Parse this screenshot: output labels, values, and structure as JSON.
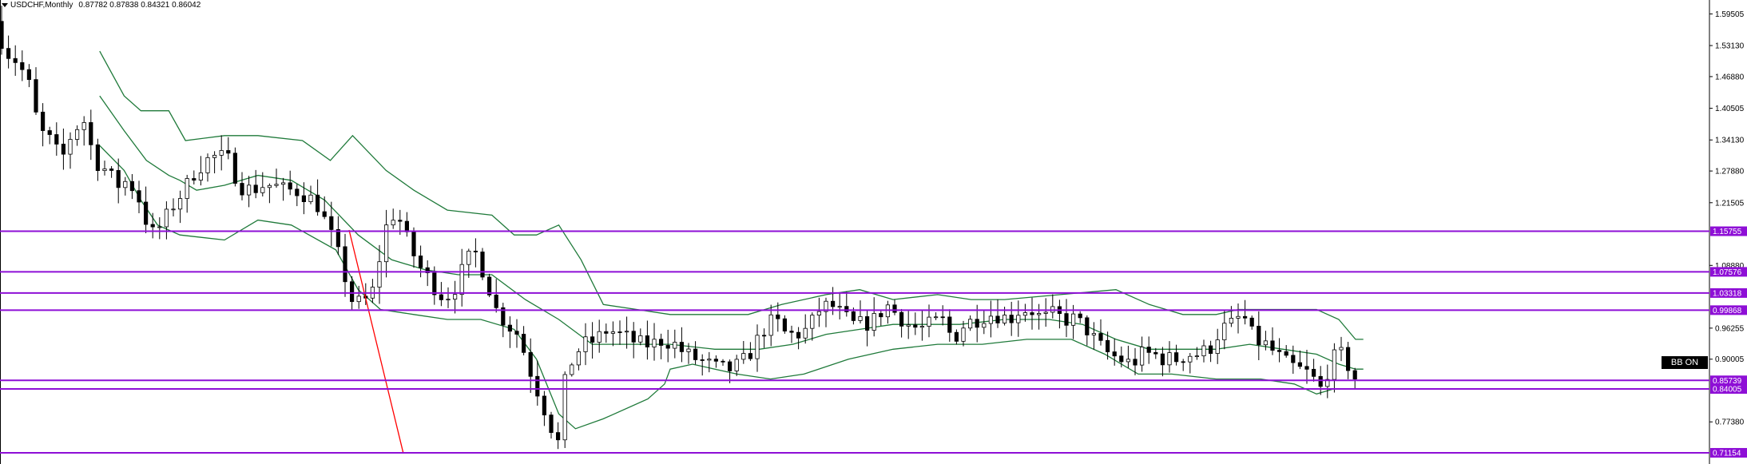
{
  "header": {
    "symbol": "USDCHF,Monthly",
    "ohlc": "0.87782 0.87838 0.84321 0.86042"
  },
  "badge": "BB ON",
  "colors": {
    "level_line": "#8e0fd6",
    "band": "#1f7a3a",
    "trend": "#ff0000",
    "bull": "#ffffff",
    "bear": "#000000",
    "wick": "#000000"
  },
  "chart_data": {
    "type": "candlestick",
    "ylim": [
      0.689,
      1.623
    ],
    "y_ticks": [
      {
        "value": 1.595,
        "label": "1.59505"
      },
      {
        "value": 1.5313,
        "label": "1.53130"
      },
      {
        "value": 1.4688,
        "label": "1.46880"
      },
      {
        "value": 1.405,
        "label": "1.40505"
      },
      {
        "value": 1.3413,
        "label": "1.34130"
      },
      {
        "value": 1.2788,
        "label": "1.27880"
      },
      {
        "value": 1.215,
        "label": "1.21505"
      },
      {
        "value": 1.0888,
        "label": "1.08880"
      },
      {
        "value": 0.9625,
        "label": "0.96255"
      },
      {
        "value": 0.9,
        "label": "0.90005"
      },
      {
        "value": 0.7738,
        "label": "0.77380"
      }
    ],
    "levels": [
      {
        "value": 1.15755,
        "label": "1.15755"
      },
      {
        "value": 1.07576,
        "label": "1.07576"
      },
      {
        "value": 1.03318,
        "label": "1.03318"
      },
      {
        "value": 0.99868,
        "label": "0.99868"
      },
      {
        "value": 0.85739,
        "label": "0.85739"
      },
      {
        "value": 0.84005,
        "label": "0.84005"
      },
      {
        "value": 0.71154,
        "label": "0.71154"
      }
    ],
    "trend_line": {
      "from": [
        1.16
      ],
      "to": [
        0.71
      ]
    },
    "anchors": [
      [
        0,
        1.58
      ],
      [
        10,
        1.52
      ],
      [
        20,
        1.5
      ],
      [
        30,
        1.46
      ],
      [
        40,
        1.36
      ],
      [
        50,
        1.34
      ],
      [
        60,
        1.3
      ],
      [
        70,
        1.36
      ],
      [
        80,
        1.38
      ],
      [
        90,
        1.3
      ],
      [
        100,
        1.28
      ],
      [
        110,
        1.25
      ],
      [
        120,
        1.26
      ],
      [
        130,
        1.22
      ],
      [
        140,
        1.15
      ],
      [
        150,
        1.17
      ],
      [
        160,
        1.21
      ],
      [
        170,
        1.24
      ],
      [
        180,
        1.28
      ],
      [
        190,
        1.3
      ],
      [
        200,
        1.31
      ],
      [
        210,
        1.3
      ],
      [
        220,
        1.25
      ],
      [
        230,
        1.24
      ],
      [
        240,
        1.25
      ],
      [
        250,
        1.25
      ],
      [
        260,
        1.24
      ],
      [
        270,
        1.24
      ],
      [
        280,
        1.23
      ],
      [
        290,
        1.21
      ],
      [
        300,
        1.16
      ],
      [
        310,
        1.1
      ],
      [
        320,
        1.02
      ],
      [
        330,
        1.01
      ],
      [
        340,
        1.04
      ],
      [
        350,
        1.16
      ],
      [
        360,
        1.2
      ],
      [
        370,
        1.14
      ],
      [
        380,
        1.09
      ],
      [
        390,
        1.06
      ],
      [
        400,
        1.03
      ],
      [
        410,
        1.03
      ],
      [
        420,
        1.08
      ],
      [
        430,
        1.12
      ],
      [
        440,
        1.07
      ],
      [
        450,
        1.0
      ],
      [
        460,
        0.97
      ],
      [
        470,
        0.95
      ],
      [
        480,
        0.88
      ],
      [
        490,
        0.82
      ],
      [
        500,
        0.76
      ],
      [
        505,
        0.72
      ],
      [
        510,
        0.84
      ],
      [
        520,
        0.91
      ],
      [
        530,
        0.93
      ],
      [
        540,
        0.94
      ],
      [
        550,
        0.96
      ],
      [
        560,
        0.95
      ],
      [
        570,
        0.94
      ],
      [
        580,
        0.93
      ],
      [
        590,
        0.93
      ],
      [
        600,
        0.94
      ],
      [
        610,
        0.93
      ],
      [
        620,
        0.91
      ],
      [
        630,
        0.9
      ],
      [
        640,
        0.89
      ],
      [
        650,
        0.88
      ],
      [
        660,
        0.88
      ],
      [
        670,
        0.89
      ],
      [
        680,
        0.92
      ],
      [
        690,
        0.96
      ],
      [
        700,
        0.98
      ],
      [
        710,
        0.95
      ],
      [
        720,
        0.95
      ],
      [
        730,
        0.96
      ],
      [
        740,
        1.0
      ],
      [
        750,
        1.01
      ],
      [
        760,
        0.99
      ],
      [
        770,
        0.97
      ],
      [
        780,
        0.97
      ],
      [
        790,
        0.98
      ],
      [
        800,
        1.01
      ],
      [
        810,
        0.99
      ],
      [
        820,
        0.97
      ],
      [
        830,
        0.96
      ],
      [
        840,
        0.97
      ],
      [
        850,
        0.98
      ],
      [
        860,
        0.94
      ],
      [
        870,
        0.97
      ],
      [
        880,
        0.98
      ],
      [
        890,
        0.99
      ],
      [
        900,
        0.99
      ],
      [
        910,
        0.98
      ],
      [
        920,
        1.0
      ],
      [
        930,
        1.0
      ],
      [
        940,
        0.98
      ],
      [
        950,
        0.99
      ],
      [
        960,
        0.98
      ],
      [
        970,
        0.98
      ],
      [
        980,
        0.96
      ],
      [
        990,
        0.93
      ],
      [
        1000,
        0.91
      ],
      [
        1010,
        0.9
      ],
      [
        1020,
        0.89
      ],
      [
        1030,
        0.91
      ],
      [
        1040,
        0.91
      ],
      [
        1050,
        0.9
      ],
      [
        1060,
        0.9
      ],
      [
        1070,
        0.91
      ],
      [
        1080,
        0.91
      ],
      [
        1090,
        0.92
      ],
      [
        1100,
        0.96
      ],
      [
        1110,
        0.97
      ],
      [
        1120,
        0.99
      ],
      [
        1130,
        0.94
      ],
      [
        1140,
        0.93
      ],
      [
        1150,
        0.91
      ],
      [
        1160,
        0.89
      ],
      [
        1170,
        0.88
      ],
      [
        1180,
        0.87
      ],
      [
        1190,
        0.84
      ],
      [
        1200,
        0.9
      ],
      [
        1210,
        0.91
      ],
      [
        1220,
        0.86
      ]
    ],
    "bands": {
      "upper": [
        [
          88,
          1.52
        ],
        [
          110,
          1.43
        ],
        [
          125,
          1.4
        ],
        [
          150,
          1.4
        ],
        [
          165,
          1.34
        ],
        [
          200,
          1.35
        ],
        [
          230,
          1.35
        ],
        [
          270,
          1.34
        ],
        [
          295,
          1.3
        ],
        [
          315,
          1.35
        ],
        [
          345,
          1.28
        ],
        [
          370,
          1.24
        ],
        [
          400,
          1.2
        ],
        [
          440,
          1.19
        ],
        [
          460,
          1.15
        ],
        [
          480,
          1.15
        ],
        [
          500,
          1.17
        ],
        [
          520,
          1.1
        ],
        [
          540,
          1.01
        ],
        [
          570,
          1.0
        ],
        [
          600,
          0.99
        ],
        [
          640,
          0.99
        ],
        [
          670,
          0.99
        ],
        [
          700,
          1.01
        ],
        [
          740,
          1.03
        ],
        [
          770,
          1.04
        ],
        [
          800,
          1.02
        ],
        [
          840,
          1.03
        ],
        [
          870,
          1.02
        ],
        [
          900,
          1.02
        ],
        [
          950,
          1.03
        ],
        [
          1000,
          1.04
        ],
        [
          1030,
          1.01
        ],
        [
          1060,
          0.99
        ],
        [
          1090,
          0.99
        ],
        [
          1110,
          1.0
        ],
        [
          1150,
          1.0
        ],
        [
          1180,
          1.0
        ],
        [
          1200,
          0.98
        ],
        [
          1215,
          0.94
        ],
        [
          1222,
          0.94
        ]
      ],
      "middle": [
        [
          88,
          1.43
        ],
        [
          110,
          1.36
        ],
        [
          130,
          1.3
        ],
        [
          150,
          1.27
        ],
        [
          160,
          1.26
        ],
        [
          175,
          1.24
        ],
        [
          200,
          1.25
        ],
        [
          230,
          1.27
        ],
        [
          260,
          1.26
        ],
        [
          290,
          1.22
        ],
        [
          320,
          1.15
        ],
        [
          350,
          1.1
        ],
        [
          380,
          1.08
        ],
        [
          410,
          1.07
        ],
        [
          440,
          1.07
        ],
        [
          470,
          1.02
        ],
        [
          500,
          0.98
        ],
        [
          530,
          0.93
        ],
        [
          560,
          0.93
        ],
        [
          600,
          0.93
        ],
        [
          640,
          0.92
        ],
        [
          680,
          0.92
        ],
        [
          710,
          0.93
        ],
        [
          740,
          0.95
        ],
        [
          770,
          0.96
        ],
        [
          800,
          0.97
        ],
        [
          830,
          0.97
        ],
        [
          860,
          0.97
        ],
        [
          900,
          0.98
        ],
        [
          940,
          0.98
        ],
        [
          970,
          0.97
        ],
        [
          1000,
          0.94
        ],
        [
          1030,
          0.92
        ],
        [
          1060,
          0.92
        ],
        [
          1090,
          0.92
        ],
        [
          1120,
          0.93
        ],
        [
          1150,
          0.92
        ],
        [
          1180,
          0.91
        ],
        [
          1200,
          0.89
        ],
        [
          1215,
          0.88
        ],
        [
          1222,
          0.88
        ]
      ],
      "lower": [
        [
          88,
          1.33
        ],
        [
          110,
          1.28
        ],
        [
          125,
          1.22
        ],
        [
          140,
          1.17
        ],
        [
          160,
          1.15
        ],
        [
          200,
          1.14
        ],
        [
          230,
          1.18
        ],
        [
          260,
          1.17
        ],
        [
          300,
          1.12
        ],
        [
          320,
          1.04
        ],
        [
          340,
          1.0
        ],
        [
          370,
          0.99
        ],
        [
          400,
          0.98
        ],
        [
          430,
          0.98
        ],
        [
          460,
          0.96
        ],
        [
          480,
          0.9
        ],
        [
          500,
          0.79
        ],
        [
          515,
          0.76
        ],
        [
          540,
          0.78
        ],
        [
          580,
          0.82
        ],
        [
          595,
          0.85
        ],
        [
          600,
          0.88
        ],
        [
          620,
          0.89
        ],
        [
          660,
          0.87
        ],
        [
          690,
          0.86
        ],
        [
          720,
          0.87
        ],
        [
          760,
          0.9
        ],
        [
          800,
          0.92
        ],
        [
          840,
          0.93
        ],
        [
          880,
          0.93
        ],
        [
          920,
          0.94
        ],
        [
          960,
          0.94
        ],
        [
          990,
          0.91
        ],
        [
          1020,
          0.87
        ],
        [
          1050,
          0.87
        ],
        [
          1090,
          0.86
        ],
        [
          1130,
          0.86
        ],
        [
          1160,
          0.85
        ],
        [
          1180,
          0.83
        ],
        [
          1195,
          0.84
        ],
        [
          1215,
          0.84
        ],
        [
          1222,
          0.84
        ]
      ]
    }
  }
}
